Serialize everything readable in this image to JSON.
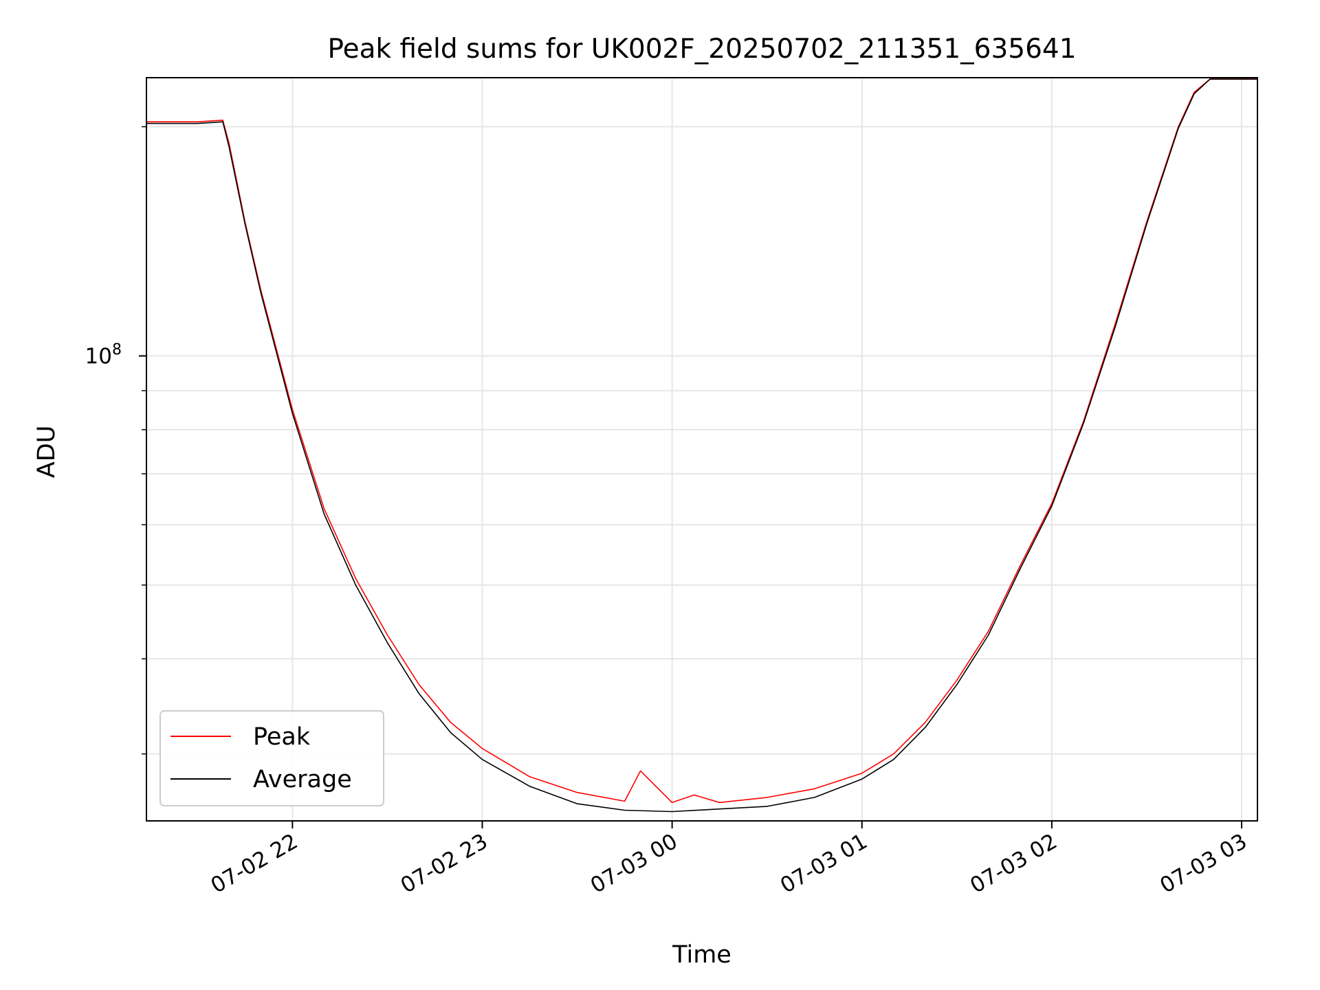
{
  "chart_data": {
    "type": "line",
    "title": "Peak field sums for UK002F_20250702_211351_635641",
    "xlabel": "Time",
    "ylabel": "ADU",
    "yscale": "log",
    "xlim": [
      "2025-07-02 21:13:51",
      "2025-07-03 03:05:00"
    ],
    "ylim": [
      24500000,
      232000000
    ],
    "x_ticks": [
      {
        "t": "2025-07-02 22:00",
        "label": "07-02 22"
      },
      {
        "t": "2025-07-02 23:00",
        "label": "07-02 23"
      },
      {
        "t": "2025-07-03 00:00",
        "label": "07-03 00"
      },
      {
        "t": "2025-07-03 01:00",
        "label": "07-03 01"
      },
      {
        "t": "2025-07-03 02:00",
        "label": "07-03 02"
      },
      {
        "t": "2025-07-03 03:00",
        "label": "07-03 03"
      }
    ],
    "y_major_ticks": [
      {
        "value": 100000000,
        "label": "10^8"
      }
    ],
    "y_minor_ticks": [
      30000000,
      40000000,
      50000000,
      60000000,
      70000000,
      80000000,
      90000000,
      200000000
    ],
    "grid": true,
    "legend_position": "lower-left",
    "series": [
      {
        "name": "Peak",
        "color": "#ff0000",
        "x": [
          "2025-07-02 21:14",
          "2025-07-02 21:30",
          "2025-07-02 21:38",
          "2025-07-02 21:40",
          "2025-07-02 21:45",
          "2025-07-02 21:50",
          "2025-07-02 22:00",
          "2025-07-02 22:10",
          "2025-07-02 22:20",
          "2025-07-02 22:30",
          "2025-07-02 22:40",
          "2025-07-02 22:50",
          "2025-07-02 23:00",
          "2025-07-02 23:15",
          "2025-07-02 23:30",
          "2025-07-02 23:45",
          "2025-07-02 23:50",
          "2025-07-03 00:00",
          "2025-07-03 00:07",
          "2025-07-03 00:15",
          "2025-07-03 00:30",
          "2025-07-03 00:45",
          "2025-07-03 01:00",
          "2025-07-03 01:10",
          "2025-07-03 01:20",
          "2025-07-03 01:30",
          "2025-07-03 01:40",
          "2025-07-03 01:50",
          "2025-07-03 02:00",
          "2025-07-03 02:10",
          "2025-07-03 02:20",
          "2025-07-03 02:30",
          "2025-07-03 02:40",
          "2025-07-03 02:45",
          "2025-07-03 02:50",
          "2025-07-03 03:00",
          "2025-07-03 03:05"
        ],
        "y": [
          203000000,
          203000000,
          204000000,
          190000000,
          150000000,
          122000000,
          85000000,
          63000000,
          51000000,
          43000000,
          37000000,
          33000000,
          30500000,
          28000000,
          26700000,
          26000000,
          28500000,
          25900000,
          26500000,
          25900000,
          26300000,
          27000000,
          28300000,
          30000000,
          33000000,
          37500000,
          43500000,
          53000000,
          64000000,
          82000000,
          110000000,
          150000000,
          200000000,
          222000000,
          231000000,
          231000000,
          231000000
        ]
      },
      {
        "name": "Average",
        "color": "#000000",
        "x": [
          "2025-07-02 21:14",
          "2025-07-02 21:30",
          "2025-07-02 21:38",
          "2025-07-02 21:40",
          "2025-07-02 21:45",
          "2025-07-02 21:50",
          "2025-07-02 22:00",
          "2025-07-02 22:10",
          "2025-07-02 22:20",
          "2025-07-02 22:30",
          "2025-07-02 22:40",
          "2025-07-02 22:50",
          "2025-07-02 23:00",
          "2025-07-02 23:15",
          "2025-07-02 23:30",
          "2025-07-02 23:45",
          "2025-07-03 00:00",
          "2025-07-03 00:15",
          "2025-07-03 00:30",
          "2025-07-03 00:45",
          "2025-07-03 01:00",
          "2025-07-03 01:10",
          "2025-07-03 01:20",
          "2025-07-03 01:30",
          "2025-07-03 01:40",
          "2025-07-03 01:50",
          "2025-07-03 02:00",
          "2025-07-03 02:10",
          "2025-07-03 02:20",
          "2025-07-03 02:30",
          "2025-07-03 02:40",
          "2025-07-03 02:45",
          "2025-07-03 02:50",
          "2025-07-03 03:00",
          "2025-07-03 03:05"
        ],
        "y": [
          202000000,
          202000000,
          203000000,
          188000000,
          149000000,
          121000000,
          84000000,
          62000000,
          50000000,
          42000000,
          36000000,
          32000000,
          29500000,
          27200000,
          25800000,
          25300000,
          25200000,
          25400000,
          25600000,
          26300000,
          27800000,
          29500000,
          32500000,
          37000000,
          43000000,
          52500000,
          63500000,
          81500000,
          109000000,
          149000000,
          199000000,
          221000000,
          231000000,
          231000000,
          231000000
        ]
      }
    ]
  }
}
